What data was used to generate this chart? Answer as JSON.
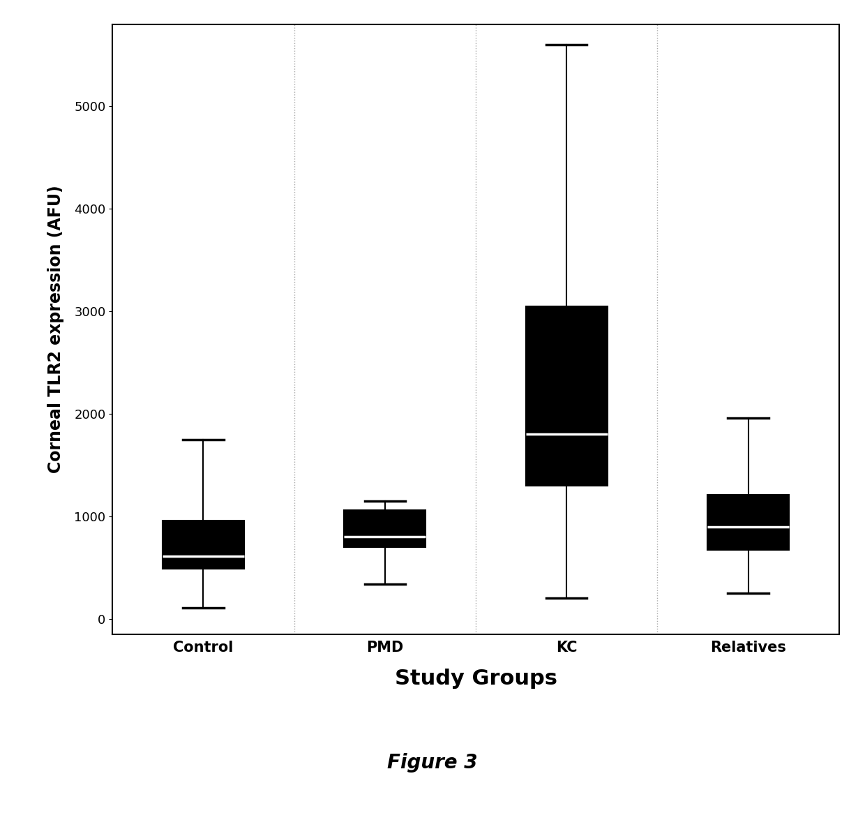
{
  "categories": [
    "Control",
    "PMD",
    "KC",
    "Relatives"
  ],
  "boxes": [
    {
      "whislo": 110,
      "q1": 490,
      "med": 610,
      "q3": 960,
      "whishi": 1750
    },
    {
      "whislo": 340,
      "q1": 700,
      "med": 800,
      "q3": 1060,
      "whishi": 1150
    },
    {
      "whislo": 200,
      "q1": 1300,
      "med": 1800,
      "q3": 3050,
      "whishi": 5600
    },
    {
      "whislo": 250,
      "q1": 670,
      "med": 900,
      "q3": 1210,
      "whishi": 1960
    }
  ],
  "ylabel": "Corneal TLR2 expression (AFU)",
  "xlabel": "Study Groups",
  "figure_label": "Figure 3",
  "ylim": [
    -150,
    5800
  ],
  "yticks": [
    0,
    1000,
    2000,
    3000,
    4000,
    5000
  ],
  "box_color": "#555555",
  "median_color": "#ffffff",
  "whisker_color": "#000000",
  "box_width": 0.45,
  "background_color": "#ffffff",
  "plot_bg_color": "#ffffff",
  "vline_color": "#aaaaaa",
  "border_color": "#000000"
}
